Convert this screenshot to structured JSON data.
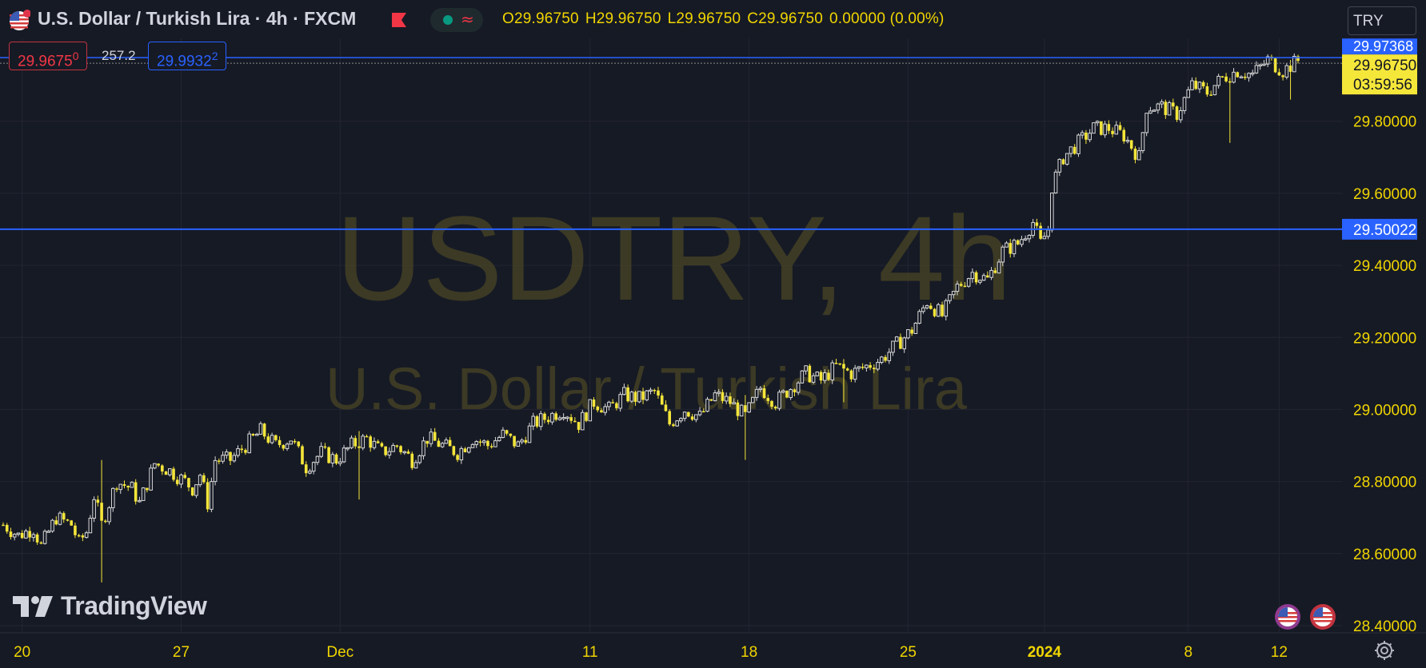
{
  "header": {
    "title": "U.S. Dollar / Turkish Lira · 4h · FXCM",
    "ohlc": {
      "open": "O29.96750",
      "high": "H29.96750",
      "low": "L29.96750",
      "close": "C29.96750",
      "change": "0.00000 (0.00%)"
    }
  },
  "trade": {
    "sell_main": "29.9675",
    "sell_sup": "0",
    "spread": "257.2",
    "buy_main": "29.9932",
    "buy_sup": "2"
  },
  "currency_select": "TRY",
  "watermark": {
    "line1": "USDTRY, 4h",
    "line2": "U.S. Dollar / Turkish Lira"
  },
  "logo_text": "TradingView",
  "colors": {
    "background": "#161a25",
    "candle": "#f5e63a",
    "price_line": "#2962ff",
    "axis_text": "#f0d500",
    "last_price_bg": "#f5e63a",
    "grid": "#232632"
  },
  "chart_data": {
    "type": "candlestick",
    "ylim": [
      28.38,
      30.03
    ],
    "y_ticks": [
      "29.80000",
      "29.60000",
      "29.40000",
      "29.20000",
      "29.00000",
      "28.80000",
      "28.60000",
      "28.40000"
    ],
    "y_tick_values": [
      29.8,
      29.6,
      29.4,
      29.2,
      29.0,
      28.8,
      28.6,
      28.4
    ],
    "x_ticks": [
      {
        "label": "20",
        "bar": 5,
        "bold": false
      },
      {
        "label": "27",
        "bar": 47,
        "bold": false
      },
      {
        "label": "Dec",
        "bar": 89,
        "bold": false
      },
      {
        "label": "11",
        "bar": 155,
        "bold": false
      },
      {
        "label": "18",
        "bar": 197,
        "bold": false
      },
      {
        "label": "25",
        "bar": 239,
        "bold": false
      },
      {
        "label": "2024",
        "bar": 275,
        "bold": true
      },
      {
        "label": "8",
        "bar": 313,
        "bold": false
      },
      {
        "label": "12",
        "bar": 337,
        "bold": false
      }
    ],
    "bar_count": 343,
    "last_price": "29.96750",
    "countdown": "03:59:56",
    "ask_price": "29.97368",
    "horizontal_line": "29.50022",
    "horizontal_line_value": 29.50022,
    "close_path": [
      [
        0,
        28.68
      ],
      [
        4,
        28.65
      ],
      [
        8,
        28.67
      ],
      [
        10,
        28.62
      ],
      [
        14,
        28.7
      ],
      [
        18,
        28.68
      ],
      [
        20,
        28.63
      ],
      [
        22,
        28.66
      ],
      [
        24,
        28.76
      ],
      [
        26,
        28.68
      ],
      [
        30,
        28.8
      ],
      [
        34,
        28.78
      ],
      [
        36,
        28.74
      ],
      [
        40,
        28.85
      ],
      [
        44,
        28.83
      ],
      [
        48,
        28.8
      ],
      [
        50,
        28.78
      ],
      [
        52,
        28.82
      ],
      [
        54,
        28.74
      ],
      [
        56,
        28.86
      ],
      [
        60,
        28.86
      ],
      [
        64,
        28.9
      ],
      [
        68,
        28.94
      ],
      [
        72,
        28.9
      ],
      [
        76,
        28.92
      ],
      [
        80,
        28.84
      ],
      [
        84,
        28.88
      ],
      [
        88,
        28.86
      ],
      [
        92,
        28.9
      ],
      [
        96,
        28.92
      ],
      [
        100,
        28.88
      ],
      [
        104,
        28.9
      ],
      [
        108,
        28.86
      ],
      [
        112,
        28.92
      ],
      [
        116,
        28.9
      ],
      [
        120,
        28.88
      ],
      [
        124,
        28.92
      ],
      [
        128,
        28.9
      ],
      [
        132,
        28.93
      ],
      [
        136,
        28.9
      ],
      [
        140,
        28.96
      ],
      [
        144,
        28.98
      ],
      [
        148,
        29.0
      ],
      [
        152,
        28.96
      ],
      [
        156,
        29.02
      ],
      [
        160,
        29.0
      ],
      [
        164,
        29.04
      ],
      [
        168,
        29.03
      ],
      [
        172,
        29.05
      ],
      [
        176,
        28.96
      ],
      [
        180,
        29.0
      ],
      [
        184,
        28.98
      ],
      [
        188,
        29.04
      ],
      [
        192,
        29.02
      ],
      [
        196,
        28.98
      ],
      [
        200,
        29.06
      ],
      [
        204,
        29.02
      ],
      [
        208,
        29.06
      ],
      [
        212,
        29.1
      ],
      [
        216,
        29.08
      ],
      [
        220,
        29.12
      ],
      [
        224,
        29.1
      ],
      [
        228,
        29.12
      ],
      [
        232,
        29.14
      ],
      [
        236,
        29.18
      ],
      [
        240,
        29.22
      ],
      [
        244,
        29.3
      ],
      [
        248,
        29.26
      ],
      [
        252,
        29.34
      ],
      [
        256,
        29.38
      ],
      [
        260,
        29.36
      ],
      [
        264,
        29.44
      ],
      [
        268,
        29.46
      ],
      [
        272,
        29.52
      ],
      [
        274,
        29.46
      ],
      [
        276,
        29.5
      ],
      [
        277,
        29.62
      ],
      [
        280,
        29.7
      ],
      [
        284,
        29.74
      ],
      [
        288,
        29.78
      ],
      [
        292,
        29.78
      ],
      [
        296,
        29.76
      ],
      [
        300,
        29.7
      ],
      [
        302,
        29.84
      ],
      [
        306,
        29.84
      ],
      [
        310,
        29.82
      ],
      [
        314,
        29.9
      ],
      [
        318,
        29.88
      ],
      [
        322,
        29.92
      ],
      [
        326,
        29.94
      ],
      [
        330,
        29.93
      ],
      [
        334,
        29.97
      ],
      [
        338,
        29.94
      ],
      [
        342,
        29.9675
      ]
    ],
    "wicks": [
      {
        "bar": 26,
        "low": 28.52,
        "high": 28.86
      },
      {
        "bar": 94,
        "low": 28.75,
        "high": 28.94
      },
      {
        "bar": 196,
        "low": 28.86,
        "high": 29.04
      },
      {
        "bar": 222,
        "low": 29.02,
        "high": 29.14
      },
      {
        "bar": 324,
        "low": 29.74,
        "high": 29.92
      },
      {
        "bar": 340,
        "low": 29.86,
        "high": 29.97
      }
    ]
  }
}
